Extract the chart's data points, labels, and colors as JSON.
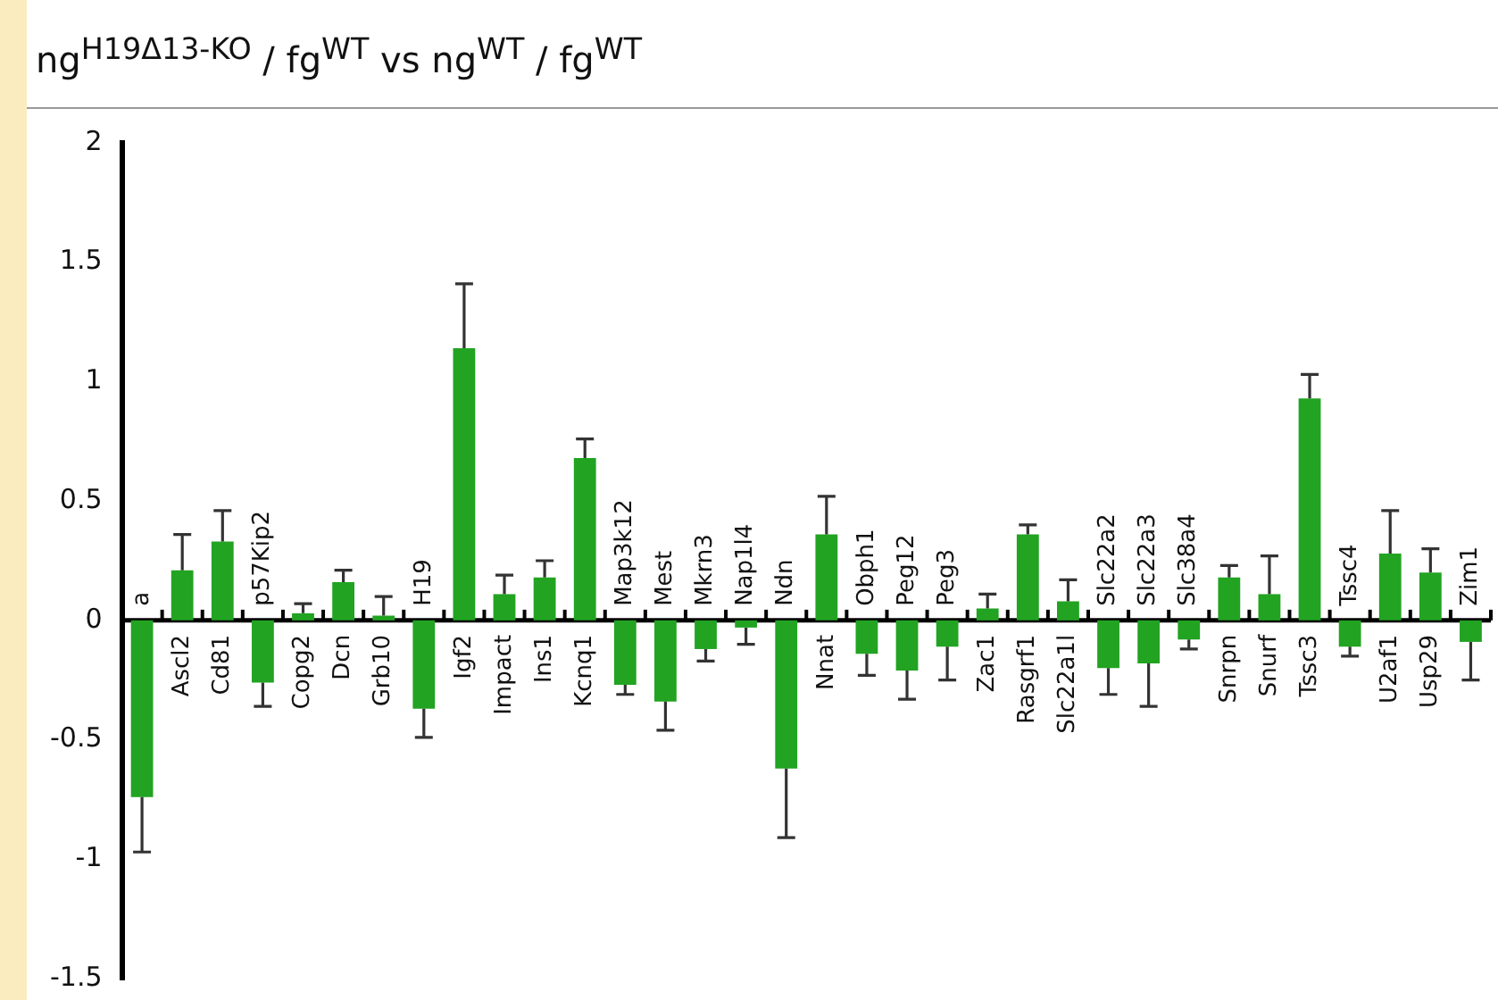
{
  "chart_data": {
    "type": "bar",
    "title": "ng$^{H19Δ13-KO}$ / fg$^{WT}$ vs ng$^{WT}$ / fg$^{WT}$",
    "categories": [
      "a",
      "Ascl2",
      "Cd81",
      "p57Kip2",
      "Copg2",
      "Dcn",
      "Grb10",
      "H19",
      "Igf2",
      "Impact",
      "Ins1",
      "Kcnq1",
      "Map3k12",
      "Mest",
      "Mkrn3",
      "Nap1l4",
      "Ndn",
      "Nnat",
      "Obph1",
      "Peg12",
      "Peg3",
      "Zac1",
      "Rasgrf1",
      "Slc22a1l",
      "Slc22a2",
      "Slc22a3",
      "Slc38a4",
      "Snrpn",
      "Snurf",
      "Tssc3",
      "Tssc4",
      "U2af1",
      "Usp29",
      "Zim1"
    ],
    "values": [
      -0.74,
      0.21,
      0.33,
      -0.26,
      0.03,
      0.16,
      0.02,
      -0.37,
      1.14,
      0.11,
      0.18,
      0.68,
      -0.27,
      -0.34,
      -0.12,
      -0.03,
      -0.62,
      0.36,
      -0.14,
      -0.21,
      -0.11,
      0.05,
      0.36,
      0.08,
      -0.2,
      -0.18,
      -0.08,
      0.18,
      0.11,
      0.93,
      -0.11,
      0.28,
      0.2,
      -0.09
    ],
    "errors": [
      [
        -0.97,
        -0.74
      ],
      [
        0.21,
        0.36
      ],
      [
        0.33,
        0.46
      ],
      [
        -0.36,
        -0.26
      ],
      [
        0.03,
        0.07
      ],
      [
        0.16,
        0.21
      ],
      [
        0.02,
        0.1
      ],
      [
        -0.49,
        -0.37
      ],
      [
        1.14,
        1.41
      ],
      [
        0.11,
        0.19
      ],
      [
        0.18,
        0.25
      ],
      [
        0.68,
        0.76
      ],
      [
        -0.31,
        -0.27
      ],
      [
        -0.46,
        -0.34
      ],
      [
        -0.17,
        -0.12
      ],
      [
        -0.1,
        -0.03
      ],
      [
        -0.91,
        -0.62
      ],
      [
        0.36,
        0.52
      ],
      [
        -0.23,
        -0.14
      ],
      [
        -0.33,
        -0.21
      ],
      [
        -0.25,
        -0.11
      ],
      [
        0.05,
        0.11
      ],
      [
        0.36,
        0.4
      ],
      [
        0.08,
        0.17
      ],
      [
        -0.31,
        -0.2
      ],
      [
        -0.36,
        -0.18
      ],
      [
        -0.12,
        -0.08
      ],
      [
        0.18,
        0.23
      ],
      [
        0.11,
        0.27
      ],
      [
        0.93,
        1.03
      ],
      [
        -0.15,
        -0.11
      ],
      [
        0.28,
        0.46
      ],
      [
        0.2,
        0.3
      ],
      [
        -0.25,
        -0.09
      ]
    ],
    "color": "#22a322",
    "ylim": [
      -1.5,
      2
    ],
    "yticks": [
      -1.5,
      -1,
      -0.5,
      0,
      0.5,
      1,
      1.5,
      2
    ],
    "grid": false
  }
}
